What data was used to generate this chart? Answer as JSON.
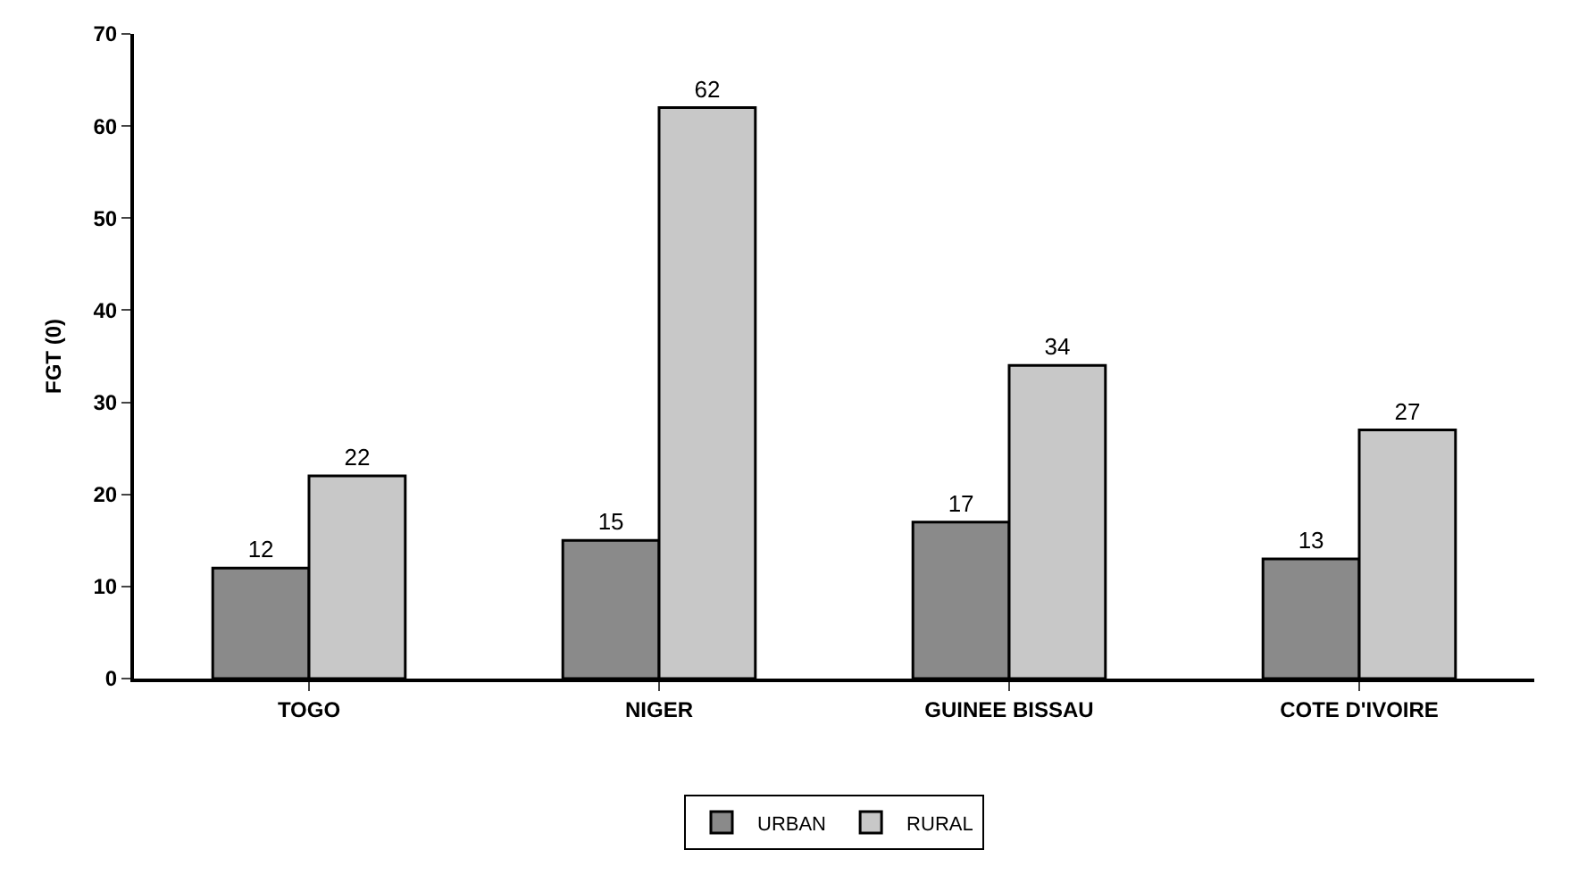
{
  "chart_data": {
    "type": "bar",
    "ylabel": "FGT (0)",
    "categories": [
      "TOGO",
      "NIGER",
      "GUINEE BISSAU",
      "COTE D'IVOIRE"
    ],
    "series": [
      {
        "name": "URBAN",
        "color": "#8a8a8a",
        "values": [
          12,
          15,
          17,
          13
        ]
      },
      {
        "name": "RURAL",
        "color": "#c8c8c8",
        "values": [
          22,
          62,
          34,
          27
        ]
      }
    ],
    "ylim": [
      0,
      70
    ],
    "yticks": [
      0,
      10,
      20,
      30,
      40,
      50,
      60,
      70
    ],
    "data_labels": true,
    "grid": false,
    "legend": "bottom"
  }
}
